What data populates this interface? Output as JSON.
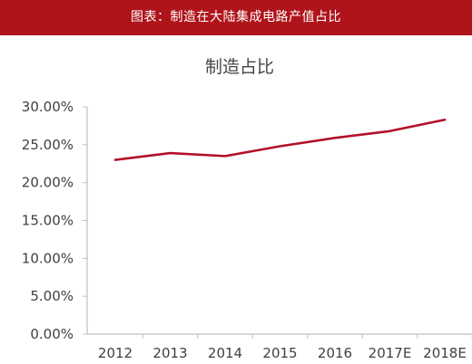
{
  "header": {
    "title": "图表：制造在大陆集成电路产值占比"
  },
  "colors": {
    "banner": "#b0141b",
    "line": "#b3102a",
    "axis": "#bfbfbf",
    "text": "#404040"
  },
  "chart_data": {
    "type": "line",
    "title": "制造占比",
    "xlabel": "",
    "ylabel": "",
    "categories": [
      "2012",
      "2013",
      "2014",
      "2015",
      "2016",
      "2017E",
      "2018E"
    ],
    "series": [
      {
        "values": [
          23.0,
          23.9,
          23.5,
          24.8,
          25.9,
          26.8,
          28.3
        ]
      }
    ],
    "ylim": [
      0,
      30
    ],
    "yticks": [
      "0.00%",
      "5.00%",
      "10.00%",
      "15.00%",
      "20.00%",
      "25.00%",
      "30.00%"
    ],
    "grid": false,
    "legend": "none"
  }
}
